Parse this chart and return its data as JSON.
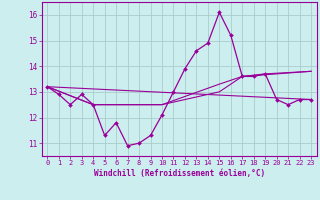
{
  "xlabel": "Windchill (Refroidissement éolien,°C)",
  "background_color": "#cceeee",
  "grid_color": "#aacccc",
  "line_color": "#990099",
  "xlim": [
    -0.5,
    23.5
  ],
  "ylim": [
    10.5,
    16.5
  ],
  "yticks": [
    11,
    12,
    13,
    14,
    15,
    16
  ],
  "xticks": [
    0,
    1,
    2,
    3,
    4,
    5,
    6,
    7,
    8,
    9,
    10,
    11,
    12,
    13,
    14,
    15,
    16,
    17,
    18,
    19,
    20,
    21,
    22,
    23
  ],
  "series1_x": [
    0,
    1,
    2,
    3,
    4,
    5,
    6,
    7,
    8,
    9,
    10,
    11,
    12,
    13,
    14,
    15,
    16,
    17,
    18,
    19,
    20,
    21,
    22,
    23
  ],
  "series1_y": [
    13.2,
    12.9,
    12.5,
    12.9,
    12.5,
    11.3,
    11.8,
    10.9,
    11.0,
    11.3,
    12.1,
    13.0,
    13.9,
    14.6,
    14.9,
    16.1,
    15.2,
    13.6,
    13.6,
    13.7,
    12.7,
    12.5,
    12.7,
    12.7
  ],
  "series2_x": [
    0,
    23
  ],
  "series2_y": [
    13.2,
    12.7
  ],
  "series3_x": [
    0,
    4,
    10,
    15,
    17,
    19,
    23
  ],
  "series3_y": [
    13.2,
    12.5,
    12.5,
    13.3,
    13.6,
    13.7,
    13.8
  ],
  "series4_x": [
    0,
    4,
    10,
    15,
    17,
    23
  ],
  "series4_y": [
    13.2,
    12.5,
    12.5,
    13.0,
    13.6,
    13.8
  ]
}
